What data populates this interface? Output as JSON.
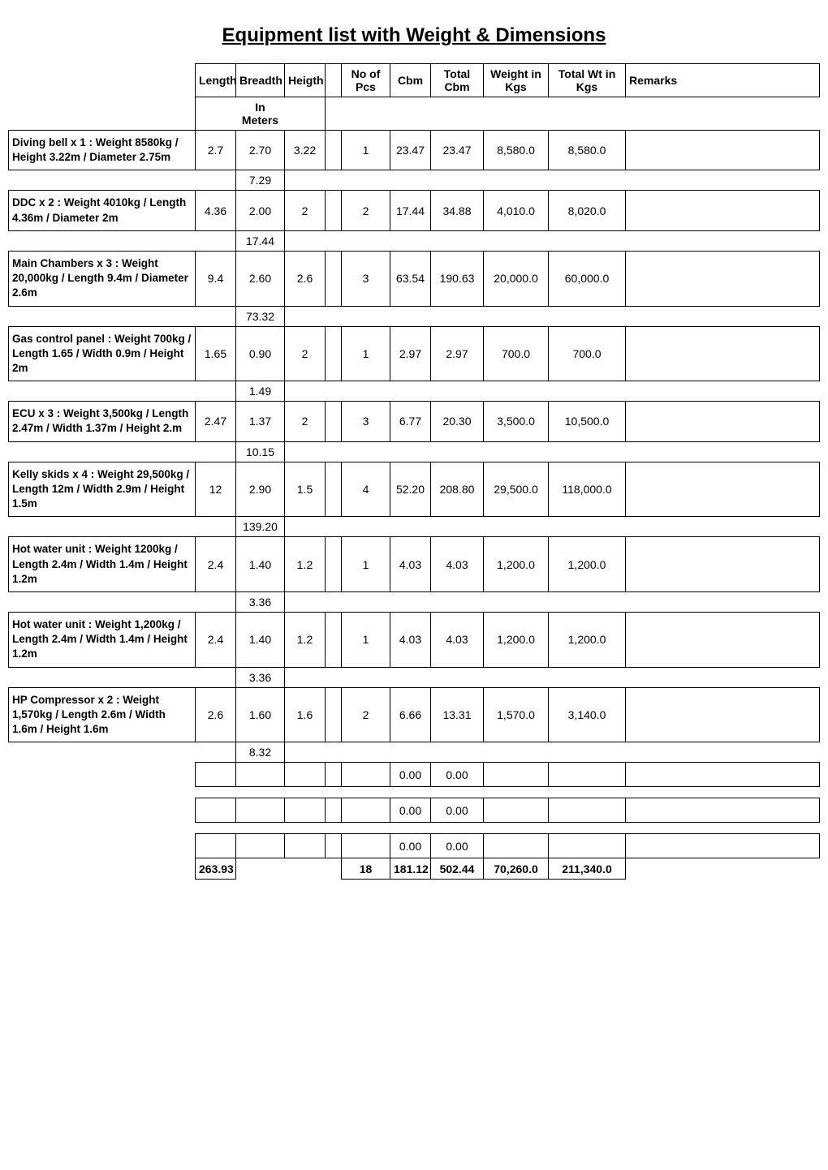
{
  "title": "Equipment list with Weight & Dimensions",
  "headers": {
    "length": "Length",
    "breadth": "Breadth",
    "height": "Heigth",
    "pcs": "No of Pcs",
    "cbm": "Cbm",
    "totcbm": "Total Cbm",
    "wkg": "Weight in Kgs",
    "twkg": "Total Wt in Kgs",
    "remarks": "Remarks",
    "inMeters": "In Meters"
  },
  "rows": [
    {
      "desc": "Diving bell x 1 : Weight 8580kg /  Height 3.22m /     Diameter 2.75m",
      "length": "2.7",
      "breadth": "2.70",
      "height": "3.22",
      "pcs": "1",
      "cbm": "23.47",
      "totcbm": "23.47",
      "wkg": "8,580.0",
      "twkg": "8,580.0",
      "subBreadth": "7.29"
    },
    {
      "desc": "DDC x 2   : Weight 4010kg /  Length 4.36m / Diameter 2m",
      "length": "4.36",
      "breadth": "2.00",
      "height": "2",
      "pcs": "2",
      "cbm": "17.44",
      "totcbm": "34.88",
      "wkg": "4,010.0",
      "twkg": "8,020.0",
      "subBreadth": "17.44"
    },
    {
      "desc": "Main Chambers x 3  : Weight 20,000kg  / Length 9.4m /    Diameter 2.6m",
      "length": "9.4",
      "breadth": "2.60",
      "height": "2.6",
      "pcs": "3",
      "cbm": "63.54",
      "totcbm": "190.63",
      "wkg": "20,000.0",
      "twkg": "60,000.0",
      "subBreadth": "73.32"
    },
    {
      "desc": "Gas control panel : Weight 700kg  /    Length 1.65  / Width 0.9m /   Height 2m",
      "length": "1.65",
      "breadth": "0.90",
      "height": "2",
      "pcs": "1",
      "cbm": "2.97",
      "totcbm": "2.97",
      "wkg": "700.0",
      "twkg": "700.0",
      "subBreadth": "1.49"
    },
    {
      "desc": "ECU x 3 :  Weight 3,500kg / Length 2.47m  / Width 1.37m /  Height 2.m",
      "length": "2.47",
      "breadth": "1.37",
      "height": "2",
      "pcs": "3",
      "cbm": "6.77",
      "totcbm": "20.30",
      "wkg": "3,500.0",
      "twkg": "10,500.0",
      "subBreadth": "10.15"
    },
    {
      "desc": "Kelly skids x 4  : Weight 29,500kg /  Length 12m / Width 2.9m /  Height 1.5m",
      "length": "12",
      "breadth": "2.90",
      "height": "1.5",
      "pcs": "4",
      "cbm": "52.20",
      "totcbm": "208.80",
      "wkg": "29,500.0",
      "twkg": "118,000.0",
      "subBreadth": "139.20"
    },
    {
      "desc": "Hot water unit  : Weight 1200kg /  Length 2.4m / Width 1.4m /   Height 1.2m",
      "length": "2.4",
      "breadth": "1.40",
      "height": "1.2",
      "pcs": "1",
      "cbm": "4.03",
      "totcbm": "4.03",
      "wkg": "1,200.0",
      "twkg": "1,200.0",
      "subBreadth": "3.36"
    },
    {
      "desc": "Hot water unit  :  Weight 1,200kg /  Length 2.4m / Width 1.4m /  Height 1.2m",
      "length": "2.4",
      "breadth": "1.40",
      "height": "1.2",
      "pcs": "1",
      "cbm": "4.03",
      "totcbm": "4.03",
      "wkg": "1,200.0",
      "twkg": "1,200.0",
      "subBreadth": "3.36"
    },
    {
      "desc": "HP Compressor x 2  : Weight 1,570kg /  Length 2.6m / Width 1.6m / Height 1.6m",
      "length": "2.6",
      "breadth": "1.60",
      "height": "1.6",
      "pcs": "2",
      "cbm": "6.66",
      "totcbm": "13.31",
      "wkg": "1,570.0",
      "twkg": "3,140.0",
      "subBreadth": "8.32"
    }
  ],
  "emptyRows": [
    {
      "cbm": "0.00",
      "totcbm": "0.00"
    },
    {
      "cbm": "0.00",
      "totcbm": "0.00"
    },
    {
      "cbm": "0.00",
      "totcbm": "0.00"
    }
  ],
  "totals": {
    "length": "263.93",
    "pcs": "18",
    "cbm": "181.12",
    "totcbm": "502.44",
    "wkg": "70,260.0",
    "twkg": "211,340.0"
  }
}
